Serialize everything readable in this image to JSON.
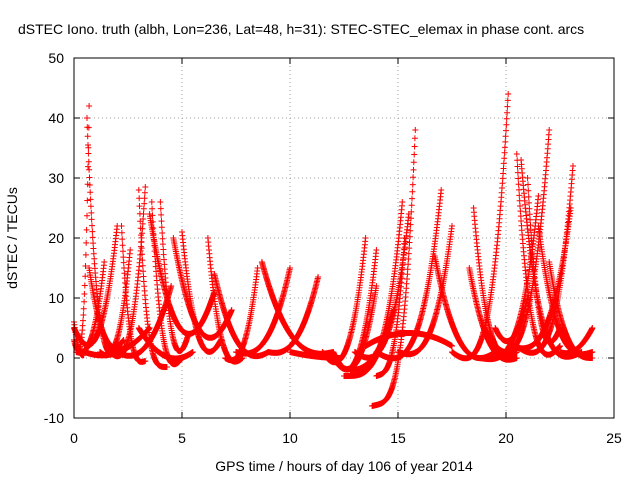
{
  "chart_data": {
    "type": "scatter",
    "title": "dSTEC Iono. truth (albh, Lon=236, Lat=48, h=31): STEC-STEC_elemax in phase cont. arcs",
    "xlabel": "GPS time / hours of day 106 of year 2014",
    "ylabel": "dSTEC  / TECUs",
    "xlim": [
      0,
      25
    ],
    "ylim": [
      -10,
      50
    ],
    "xticks": [
      0,
      5,
      10,
      15,
      20,
      25
    ],
    "yticks": [
      -10,
      0,
      10,
      20,
      30,
      40,
      50
    ],
    "grid": true,
    "legend": "none",
    "marker": "plus",
    "color": "#ff0000",
    "arcs": [
      {
        "start": 0.0,
        "end": 0.45,
        "ystart": 6,
        "yend": 0.5,
        "dip": 0.0
      },
      {
        "start": 0.0,
        "end": 0.7,
        "ystart": 3,
        "yend": 42,
        "dip": 0.0
      },
      {
        "start": 0.0,
        "end": 2.0,
        "ystart": 5,
        "yend": 22,
        "dip": -0.5
      },
      {
        "start": 0.1,
        "end": 1.4,
        "ystart": 1,
        "yend": 16,
        "dip": 0.5
      },
      {
        "start": 0.6,
        "end": 2.2,
        "ystart": 40,
        "yend": 2,
        "dip": -0.5
      },
      {
        "start": 0.7,
        "end": 2.3,
        "ystart": 15,
        "yend": 3,
        "dip": 0.0
      },
      {
        "start": 0.5,
        "end": 3.5,
        "ystart": 1,
        "yend": 5,
        "dip": -1.0
      },
      {
        "start": 1.2,
        "end": 2.6,
        "ystart": 1,
        "yend": 18,
        "dip": -0.5
      },
      {
        "start": 2.2,
        "end": 3.3,
        "ystart": 22,
        "yend": -0.5,
        "dip": -1.0
      },
      {
        "start": 1.5,
        "end": 3.3,
        "ystart": 2,
        "yend": 28.5,
        "dip": -1.0
      },
      {
        "start": 3.0,
        "end": 4.3,
        "ystart": 28,
        "yend": -1.5,
        "dip": -1.5
      },
      {
        "start": 2.0,
        "end": 4.5,
        "ystart": 1,
        "yend": 12,
        "dip": -1.0
      },
      {
        "start": 3.6,
        "end": 5.0,
        "ystart": 26,
        "yend": 0,
        "dip": -2.0
      },
      {
        "start": 3.0,
        "end": 5.5,
        "ystart": 5,
        "yend": 1,
        "dip": -2.2
      },
      {
        "start": 3.5,
        "end": 6.5,
        "ystart": 24,
        "yend": 11,
        "dip": -1.5
      },
      {
        "start": 4.0,
        "end": 5.3,
        "ystart": 26,
        "yend": 4,
        "dip": -1.0
      },
      {
        "start": 5.0,
        "end": 6.8,
        "ystart": 21,
        "yend": 3,
        "dip": -1.0
      },
      {
        "start": 4.6,
        "end": 7.3,
        "ystart": 20,
        "yend": 8,
        "dip": -1.0
      },
      {
        "start": 6.2,
        "end": 7.8,
        "ystart": 20,
        "yend": 0,
        "dip": -1.5
      },
      {
        "start": 6.5,
        "end": 9.0,
        "ystart": 14,
        "yend": 1,
        "dip": -1.0
      },
      {
        "start": 7.0,
        "end": 8.5,
        "ystart": 0,
        "yend": 15,
        "dip": -1.2
      },
      {
        "start": 7.5,
        "end": 10.0,
        "ystart": 1,
        "yend": 15,
        "dip": 0.0
      },
      {
        "start": 8.7,
        "end": 12.0,
        "ystart": 16,
        "yend": 1,
        "dip": 0.0
      },
      {
        "start": 9.0,
        "end": 11.3,
        "ystart": 1,
        "yend": 13.5,
        "dip": 0.3
      },
      {
        "start": 10.0,
        "end": 12.3,
        "ystart": 1,
        "yend": 0,
        "dip": 0.0
      },
      {
        "start": 11.5,
        "end": 13.5,
        "ystart": 1,
        "yend": 20,
        "dip": -2.5
      },
      {
        "start": 12.0,
        "end": 14.0,
        "ystart": 1,
        "yend": 18,
        "dip": -4.5
      },
      {
        "start": 12.2,
        "end": 14.0,
        "ystart": -1,
        "yend": 12,
        "dip": -3.5
      },
      {
        "start": 12.5,
        "end": 15.2,
        "ystart": -3,
        "yend": 26,
        "dip": -3.0
      },
      {
        "start": 12.8,
        "end": 14.8,
        "ystart": -2,
        "yend": 8,
        "dip": -2.0
      },
      {
        "start": 13.8,
        "end": 15.8,
        "ystart": -8,
        "yend": 38,
        "dip": -7.5
      },
      {
        "start": 13.0,
        "end": 15.5,
        "ystart": 1,
        "yend": 24,
        "dip": -1.0
      },
      {
        "start": 14.0,
        "end": 15.3,
        "ystart": -3,
        "yend": 20,
        "dip": -2.5
      },
      {
        "start": 14.0,
        "end": 17.0,
        "ystart": 1,
        "yend": 28,
        "dip": -1.0
      },
      {
        "start": 13.5,
        "end": 17.5,
        "ystart": 2,
        "yend": 2,
        "dip": 7.0
      },
      {
        "start": 15.0,
        "end": 17.5,
        "ystart": 1,
        "yend": 22,
        "dip": 0.0
      },
      {
        "start": 16.7,
        "end": 19.5,
        "ystart": 17,
        "yend": 1,
        "dip": -1.5
      },
      {
        "start": 18.3,
        "end": 20.5,
        "ystart": 15,
        "yend": 0,
        "dip": -1.0
      },
      {
        "start": 17.5,
        "end": 20.1,
        "ystart": 1,
        "yend": 44,
        "dip": -1.0
      },
      {
        "start": 18.5,
        "end": 20.5,
        "ystart": 25,
        "yend": 1,
        "dip": -0.5
      },
      {
        "start": 18.8,
        "end": 21.5,
        "ystart": 0,
        "yend": 27,
        "dip": -0.5
      },
      {
        "start": 19.0,
        "end": 22.0,
        "ystart": 5,
        "yend": 38,
        "dip": -1.0
      },
      {
        "start": 19.5,
        "end": 21.0,
        "ystart": 5,
        "yend": 10,
        "dip": -0.5
      },
      {
        "start": 20.5,
        "end": 22.5,
        "ystart": 34,
        "yend": 2,
        "dip": -0.5
      },
      {
        "start": 20.7,
        "end": 23.5,
        "ystart": 33,
        "yend": 1,
        "dip": -0.5
      },
      {
        "start": 20.2,
        "end": 23.0,
        "ystart": 2,
        "yend": 25,
        "dip": 1.0
      },
      {
        "start": 20.5,
        "end": 23.1,
        "ystart": 2,
        "yend": 32,
        "dip": 0.0
      },
      {
        "start": 21.0,
        "end": 22.5,
        "ystart": 30,
        "yend": 5,
        "dip": 1.0
      },
      {
        "start": 21.5,
        "end": 24.0,
        "ystart": 22,
        "yend": 1,
        "dip": 0.0
      },
      {
        "start": 22.0,
        "end": 24.0,
        "ystart": 16,
        "yend": 0,
        "dip": 0.0
      },
      {
        "start": 22.5,
        "end": 24.0,
        "ystart": 1,
        "yend": 5,
        "dip": 0.0
      }
    ]
  }
}
